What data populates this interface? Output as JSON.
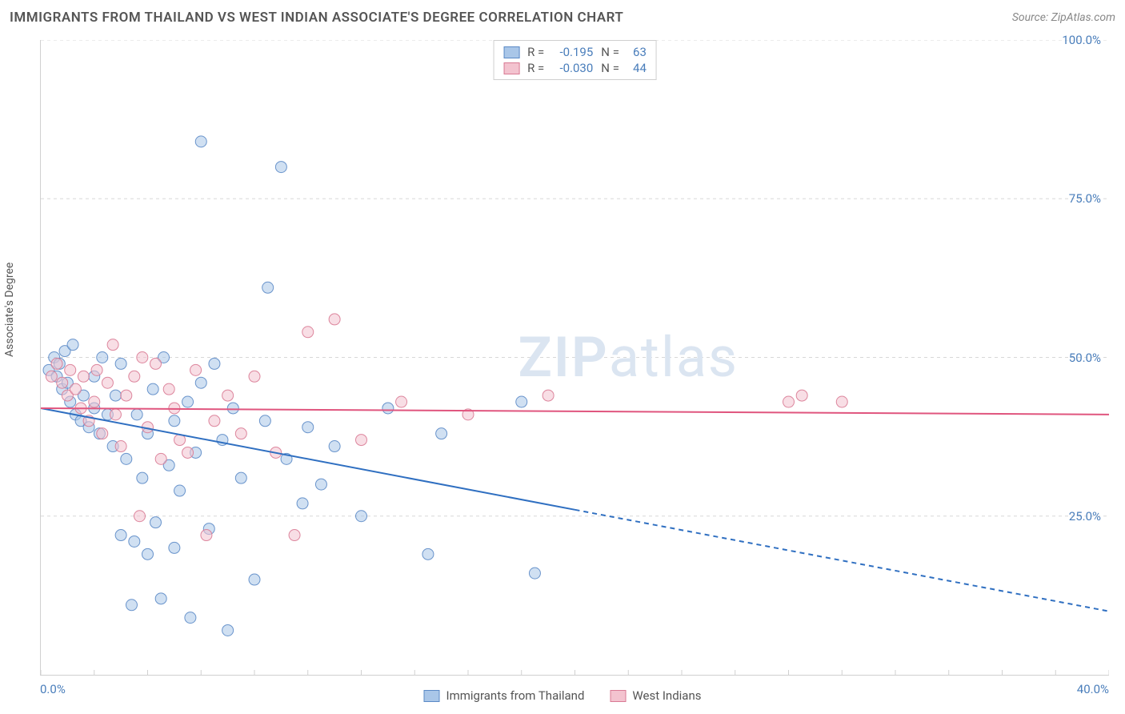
{
  "title": "IMMIGRANTS FROM THAILAND VS WEST INDIAN ASSOCIATE'S DEGREE CORRELATION CHART",
  "source_label": "Source: ZipAtlas.com",
  "watermark": {
    "part1": "ZIP",
    "part2": "atlas"
  },
  "ylabel": "Associate's Degree",
  "chart": {
    "type": "scatter",
    "xlim": [
      0,
      40
    ],
    "ylim": [
      0,
      100
    ],
    "x_ticks": [
      0,
      40
    ],
    "x_tick_labels": [
      "0.0%",
      "40.0%"
    ],
    "x_minor_tick_step": 2,
    "y_ticks": [
      25,
      50,
      75,
      100
    ],
    "y_tick_labels": [
      "25.0%",
      "50.0%",
      "75.0%",
      "100.0%"
    ],
    "grid_color": "#d8d8d8",
    "axis_color": "#d0d0d0",
    "background_color": "#ffffff",
    "label_color": "#4a7ebb",
    "marker_radius": 7,
    "marker_opacity": 0.55,
    "series": [
      {
        "id": "thailand",
        "label": "Immigrants from Thailand",
        "color_fill": "#a9c6e8",
        "color_stroke": "#5b8ac6",
        "R": "-0.195",
        "N": "63",
        "trend": {
          "color": "#2f6fc1",
          "width": 2,
          "y_at_x0": 42,
          "y_at_x40": 10,
          "solid_until_x": 20
        },
        "points": [
          [
            0.3,
            48
          ],
          [
            0.5,
            50
          ],
          [
            0.6,
            47
          ],
          [
            0.7,
            49
          ],
          [
            0.8,
            45
          ],
          [
            0.9,
            51
          ],
          [
            1.0,
            46
          ],
          [
            1.1,
            43
          ],
          [
            1.2,
            52
          ],
          [
            1.3,
            41
          ],
          [
            1.5,
            40
          ],
          [
            1.6,
            44
          ],
          [
            1.8,
            39
          ],
          [
            2.0,
            47
          ],
          [
            2.0,
            42
          ],
          [
            2.2,
            38
          ],
          [
            2.3,
            50
          ],
          [
            2.5,
            41
          ],
          [
            2.7,
            36
          ],
          [
            2.8,
            44
          ],
          [
            3.0,
            49
          ],
          [
            3.0,
            22
          ],
          [
            3.2,
            34
          ],
          [
            3.4,
            11
          ],
          [
            3.5,
            21
          ],
          [
            3.6,
            41
          ],
          [
            3.8,
            31
          ],
          [
            4.0,
            19
          ],
          [
            4.0,
            38
          ],
          [
            4.2,
            45
          ],
          [
            4.3,
            24
          ],
          [
            4.5,
            12
          ],
          [
            4.6,
            50
          ],
          [
            4.8,
            33
          ],
          [
            5.0,
            20
          ],
          [
            5.0,
            40
          ],
          [
            5.2,
            29
          ],
          [
            5.5,
            43
          ],
          [
            5.6,
            9
          ],
          [
            5.8,
            35
          ],
          [
            6.0,
            46
          ],
          [
            6.0,
            84
          ],
          [
            6.3,
            23
          ],
          [
            6.5,
            49
          ],
          [
            6.8,
            37
          ],
          [
            7.0,
            7
          ],
          [
            7.2,
            42
          ],
          [
            7.5,
            31
          ],
          [
            8.0,
            15
          ],
          [
            8.4,
            40
          ],
          [
            8.5,
            61
          ],
          [
            9.0,
            80
          ],
          [
            9.2,
            34
          ],
          [
            9.8,
            27
          ],
          [
            10.0,
            39
          ],
          [
            10.5,
            30
          ],
          [
            11.0,
            36
          ],
          [
            12.0,
            25
          ],
          [
            13.0,
            42
          ],
          [
            14.5,
            19
          ],
          [
            15.0,
            38
          ],
          [
            18.0,
            43
          ],
          [
            18.5,
            16
          ]
        ]
      },
      {
        "id": "west_indians",
        "label": "West Indians",
        "color_fill": "#f3c3cf",
        "color_stroke": "#d97a94",
        "R": "-0.030",
        "N": "44",
        "trend": {
          "color": "#e0557e",
          "width": 2,
          "y_at_x0": 42,
          "y_at_x40": 41,
          "solid_until_x": 40
        },
        "points": [
          [
            0.4,
            47
          ],
          [
            0.6,
            49
          ],
          [
            0.8,
            46
          ],
          [
            1.0,
            44
          ],
          [
            1.1,
            48
          ],
          [
            1.3,
            45
          ],
          [
            1.5,
            42
          ],
          [
            1.6,
            47
          ],
          [
            1.8,
            40
          ],
          [
            2.0,
            43
          ],
          [
            2.1,
            48
          ],
          [
            2.3,
            38
          ],
          [
            2.5,
            46
          ],
          [
            2.7,
            52
          ],
          [
            2.8,
            41
          ],
          [
            3.0,
            36
          ],
          [
            3.2,
            44
          ],
          [
            3.5,
            47
          ],
          [
            3.7,
            25
          ],
          [
            3.8,
            50
          ],
          [
            4.0,
            39
          ],
          [
            4.3,
            49
          ],
          [
            4.5,
            34
          ],
          [
            4.8,
            45
          ],
          [
            5.0,
            42
          ],
          [
            5.2,
            37
          ],
          [
            5.5,
            35
          ],
          [
            5.8,
            48
          ],
          [
            6.2,
            22
          ],
          [
            6.5,
            40
          ],
          [
            7.0,
            44
          ],
          [
            7.5,
            38
          ],
          [
            8.0,
            47
          ],
          [
            8.8,
            35
          ],
          [
            9.5,
            22
          ],
          [
            10.0,
            54
          ],
          [
            11.0,
            56
          ],
          [
            12.0,
            37
          ],
          [
            13.5,
            43
          ],
          [
            16.0,
            41
          ],
          [
            19.0,
            44
          ],
          [
            28.0,
            43
          ],
          [
            28.5,
            44
          ],
          [
            30.0,
            43
          ]
        ]
      }
    ]
  },
  "legend_top": {
    "R_label": "R =",
    "N_label": "N ="
  }
}
